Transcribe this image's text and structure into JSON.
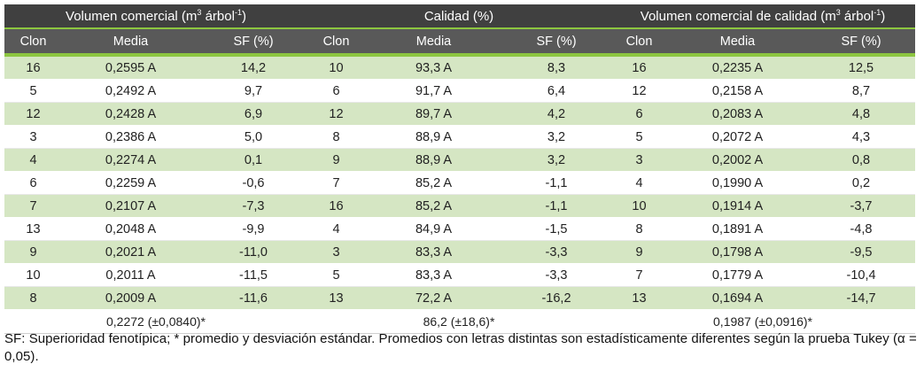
{
  "groups": [
    {
      "title_main": "Volumen comercial (m",
      "title_sup1": "3",
      "title_mid": " árbol",
      "title_sup2": "-1",
      "title_end": ")"
    },
    {
      "title_main": "Calidad (%)"
    },
    {
      "title_main": "Volumen comercial de calidad (m",
      "title_sup1": "3",
      "title_mid": " árbol",
      "title_sup2": "-1",
      "title_end": ")"
    }
  ],
  "columns": [
    "Clon",
    "Media",
    "SF (%)",
    "Clon",
    "Media",
    "SF (%)",
    "Clon",
    "Media",
    "SF (%)"
  ],
  "rows": [
    [
      "16",
      "0,2595 A",
      "14,2",
      "10",
      "93,3 A",
      "8,3",
      "16",
      "0,2235 A",
      "12,5"
    ],
    [
      "5",
      "0,2492 A",
      "9,7",
      "6",
      "91,7 A",
      "6,4",
      "12",
      "0,2158 A",
      "8,7"
    ],
    [
      "12",
      "0,2428 A",
      "6,9",
      "12",
      "89,7 A",
      "4,2",
      "6",
      "0,2083 A",
      "4,8"
    ],
    [
      "3",
      "0,2386 A",
      "5,0",
      "8",
      "88,9 A",
      "3,2",
      "5",
      "0,2072 A",
      "4,3"
    ],
    [
      "4",
      "0,2274 A",
      "0,1",
      "9",
      "88,9 A",
      "3,2",
      "3",
      "0,2002 A",
      "0,8"
    ],
    [
      "6",
      "0,2259 A",
      "-0,6",
      "7",
      "85,2 A",
      "-1,1",
      "4",
      "0,1990 A",
      "0,2"
    ],
    [
      "7",
      "0,2107 A",
      "-7,3",
      "16",
      "85,2 A",
      "-1,1",
      "10",
      "0,1914 A",
      "-3,7"
    ],
    [
      "13",
      "0,2048 A",
      "-9,9",
      "4",
      "84,9 A",
      "-1,5",
      "8",
      "0,1891 A",
      "-4,8"
    ],
    [
      "9",
      "0,2021 A",
      "-11,0",
      "3",
      "83,3 A",
      "-3,3",
      "9",
      "0,1798 A",
      "-9,5"
    ],
    [
      "10",
      "0,2011 A",
      "-11,5",
      "5",
      "83,3 A",
      "-3,3",
      "7",
      "0,1779 A",
      "-10,4"
    ],
    [
      "8",
      "0,2009 A",
      "-11,6",
      "13",
      "72,2 A",
      "-16,2",
      "13",
      "0,1694 A",
      "-14,7"
    ]
  ],
  "means": [
    "0,2272 (±0,0840)*",
    "86,2 (±18,6)*",
    "0,1987 (±0,0916)*"
  ],
  "footnote": "SF: Superioridad fenotípica; * promedio y desviación estándar. Promedios con letras distintas son estadísticamente diferentes según la prueba Tukey (α = 0,05).",
  "colors": {
    "group_header_bg": "#404040",
    "column_header_bg": "#595959",
    "accent_green": "#8cc63f",
    "row_shade": "#d5e6c3"
  }
}
